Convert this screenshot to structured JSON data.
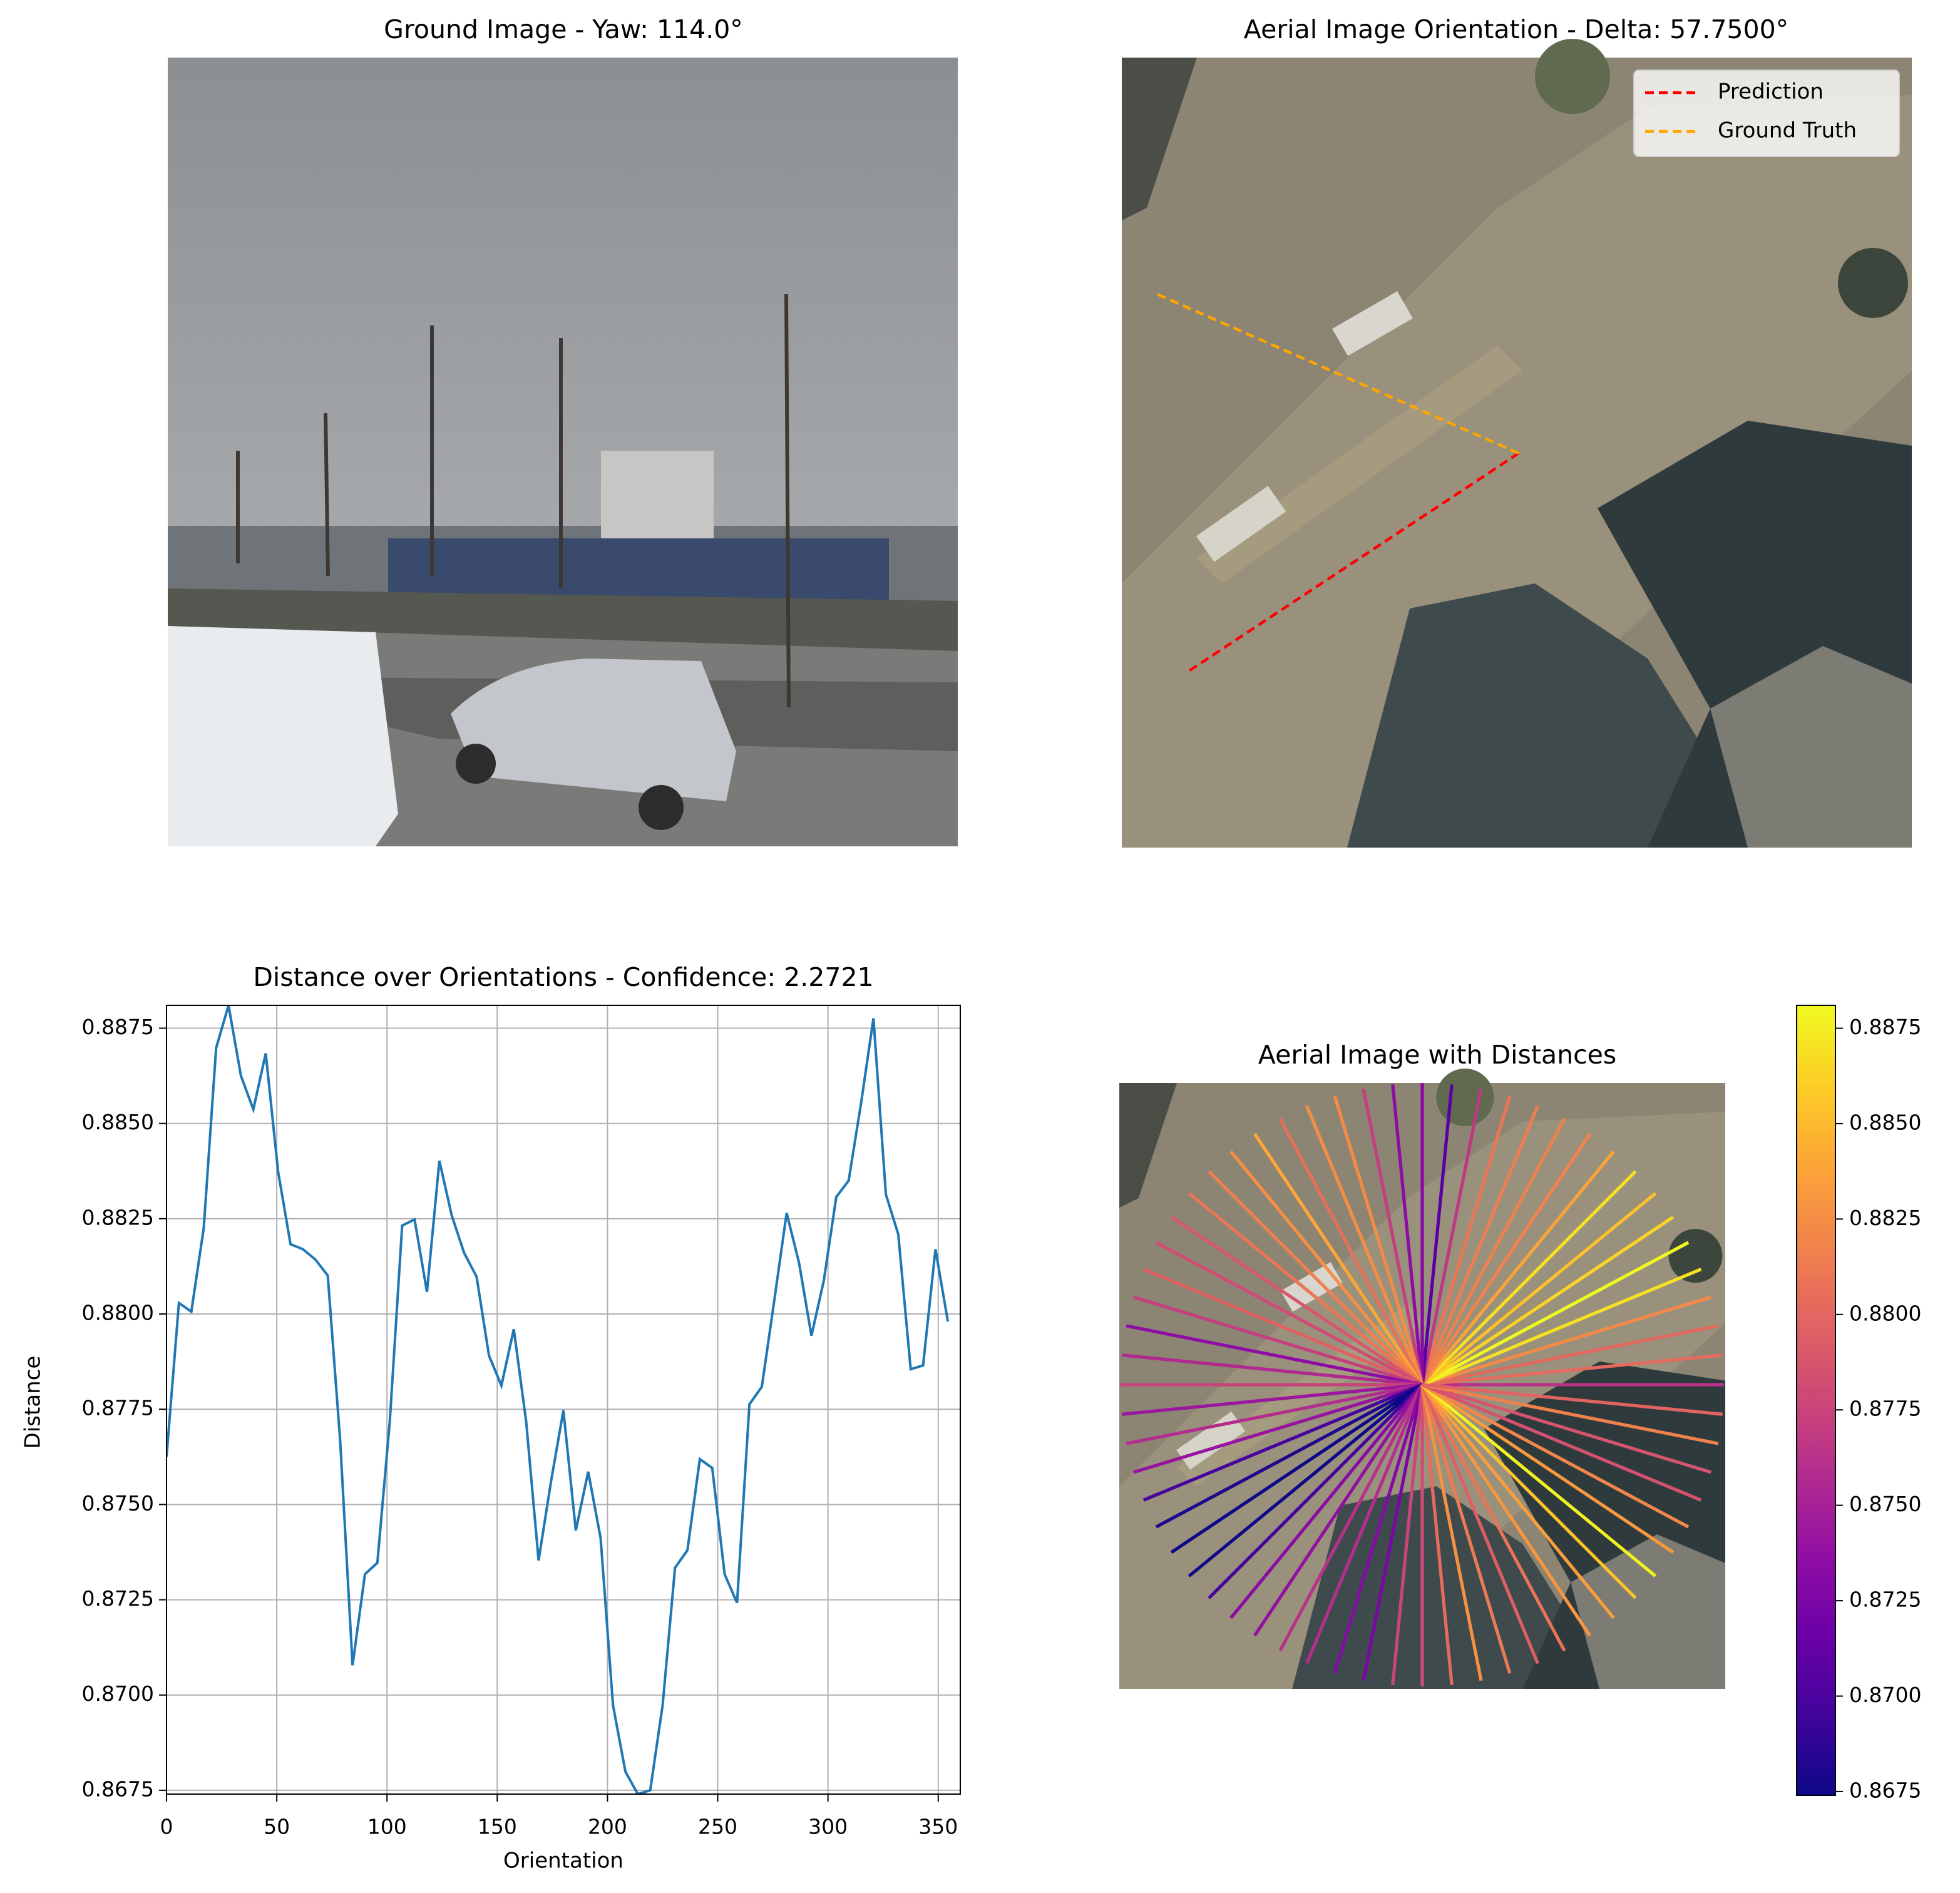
{
  "chart_data": [
    {
      "type": "image",
      "title": "Ground Image - Yaw: 114.0°"
    },
    {
      "type": "image",
      "title": "Aerial Image Orientation - Delta: 57.7500°",
      "legend": "upper right",
      "series": [
        {
          "name": "Prediction",
          "color": "#ff0000"
        },
        {
          "name": "Ground Truth",
          "color": "#ffa500"
        }
      ]
    },
    {
      "type": "line",
      "title": "Distance over Orientations - Confidence: 2.2721",
      "xlabel": "Orientation",
      "ylabel": "Distance",
      "color": "#1f77b4",
      "grid": true,
      "x": [
        0,
        5.625,
        11.25,
        16.875,
        22.5,
        28.125,
        33.75,
        39.375,
        45,
        50.625,
        56.25,
        61.875,
        67.5,
        73.125,
        78.75,
        84.375,
        90,
        95.625,
        101.25,
        106.875,
        112.5,
        118.125,
        123.75,
        129.375,
        135,
        140.625,
        146.25,
        151.875,
        157.5,
        163.125,
        168.75,
        174.375,
        180,
        185.625,
        191.25,
        196.875,
        202.5,
        208.125,
        213.75,
        219.375,
        225,
        230.625,
        236.25,
        241.875,
        247.5,
        253.125,
        258.75,
        264.375,
        270,
        275.625,
        281.25,
        286.875,
        292.5,
        298.125,
        303.75,
        309.375,
        315,
        320.625,
        326.25,
        331.875,
        337.5,
        343.125,
        348.75,
        354.375
      ],
      "values": [
        0.87625,
        0.88029,
        0.88006,
        0.88225,
        0.88698,
        0.8881,
        0.88625,
        0.88537,
        0.88684,
        0.88373,
        0.88183,
        0.8817,
        0.88143,
        0.88101,
        0.87668,
        0.87078,
        0.87317,
        0.87347,
        0.87717,
        0.88232,
        0.88248,
        0.88058,
        0.88402,
        0.88258,
        0.8816,
        0.88098,
        0.87891,
        0.87812,
        0.8796,
        0.87717,
        0.87353,
        0.8756,
        0.87747,
        0.87432,
        0.87586,
        0.87412,
        0.86973,
        0.86799,
        0.8674,
        0.8675,
        0.86973,
        0.87334,
        0.8738,
        0.87619,
        0.87596,
        0.87317,
        0.87242,
        0.87763,
        0.87809,
        0.88035,
        0.88265,
        0.88134,
        0.87943,
        0.88088,
        0.88307,
        0.8835,
        0.88553,
        0.88776,
        0.88314,
        0.88209,
        0.87855,
        0.87865,
        0.8817,
        0.8798
      ],
      "xlim": [
        0,
        360
      ],
      "xticks": [
        0,
        50,
        100,
        150,
        200,
        250,
        300,
        350
      ],
      "ylim": [
        0.8674,
        0.8881
      ],
      "yticks": [
        0.8675,
        {
          "value": 0.87,
          "label": "0.8700"
        },
        0.8725,
        {
          "value": 0.875,
          "label": "0.8750"
        },
        0.8775,
        {
          "value": 0.88,
          "label": "0.8800"
        },
        0.8825,
        {
          "value": 0.885,
          "label": "0.8850"
        },
        0.8875
      ]
    },
    {
      "type": "radial",
      "title": "Aerial Image with Distances",
      "colormap": "plasma",
      "clim": [
        0.8674,
        0.8881
      ],
      "cticks": [
        0.8675,
        {
          "value": 0.87,
          "label": "0.8700"
        },
        0.8725,
        {
          "value": 0.875,
          "label": "0.8750"
        },
        0.8775,
        {
          "value": 0.88,
          "label": "0.8800"
        },
        0.8825,
        {
          "value": 0.885,
          "label": "0.8850"
        },
        0.8875
      ]
    }
  ]
}
